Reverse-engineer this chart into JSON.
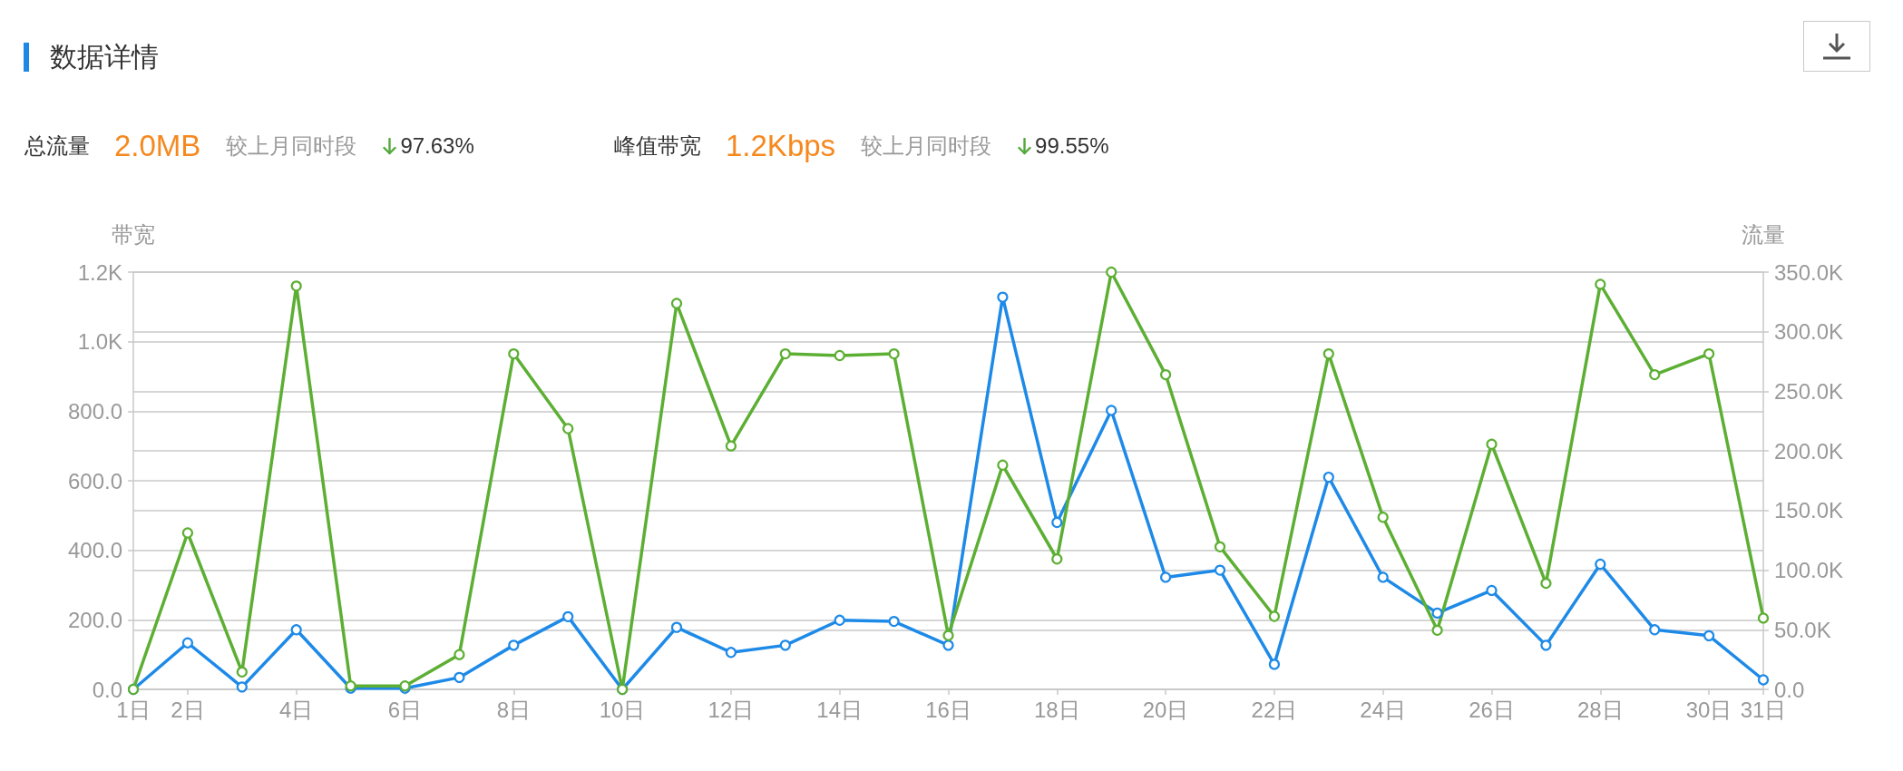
{
  "chart_data": {
    "type": "line",
    "title": "数据详情",
    "ylabel": "带宽",
    "y2label": "流量",
    "annotations": [
      "总流量",
      "2.0MB",
      "较上月同时段",
      "97.63%",
      "峰值带宽",
      "1.2Kbps",
      "较上月同时段",
      "99.55%"
    ],
    "categories": [
      "1日",
      "2日",
      null,
      "4日",
      null,
      "6日",
      null,
      "8日",
      null,
      "10日",
      null,
      "12日",
      null,
      "14日",
      null,
      "16日",
      null,
      "18日",
      null,
      "20日",
      null,
      "22日",
      null,
      "24日",
      null,
      "26日",
      null,
      "28日",
      null,
      "30日",
      "31日"
    ],
    "series": [
      {
        "color": "#1e8ae8",
        "axis": "y2",
        "values": [
          0,
          39000,
          2000,
          50000,
          1000,
          1000,
          10000,
          37000,
          61000,
          0,
          52000,
          31000,
          37000,
          58000,
          57000,
          37000,
          329000,
          140000,
          234000,
          94000,
          100000,
          21000,
          178000,
          94000,
          64000,
          83000,
          37000,
          105000,
          50000,
          45000,
          8000
        ]
      },
      {
        "color": "#5daf34",
        "axis": "y",
        "values": [
          0,
          450,
          50,
          1160,
          10,
          10,
          100,
          965,
          750,
          0,
          1110,
          700,
          965,
          960,
          965,
          155,
          645,
          375,
          1200,
          905,
          410,
          210,
          965,
          495,
          170,
          705,
          305,
          1165,
          905,
          965,
          205
        ]
      }
    ],
    "ylim": [
      0,
      1200
    ],
    "yticks": [
      {
        "value": 0,
        "label": "0.0"
      },
      {
        "value": 200,
        "label": "200.0"
      },
      {
        "value": 400,
        "label": "400.0"
      },
      {
        "value": 600,
        "label": "600.0"
      },
      {
        "value": 800,
        "label": "800.0"
      },
      {
        "value": 1000,
        "label": "1.0K"
      },
      {
        "value": 1200,
        "label": "1.2K"
      }
    ],
    "y2lim": [
      0,
      350000
    ],
    "y2ticks": [
      {
        "value": 0,
        "label": "0.0"
      },
      {
        "value": 50000,
        "label": "50.0K"
      },
      {
        "value": 100000,
        "label": "100.0K"
      },
      {
        "value": 150000,
        "label": "150.0K"
      },
      {
        "value": 200000,
        "label": "200.0K"
      },
      {
        "value": 250000,
        "label": "250.0K"
      },
      {
        "value": 300000,
        "label": "300.0K"
      },
      {
        "value": 350000,
        "label": "350.0K"
      }
    ],
    "grid": "y",
    "marker": "circle",
    "line_style": "solid"
  }
}
